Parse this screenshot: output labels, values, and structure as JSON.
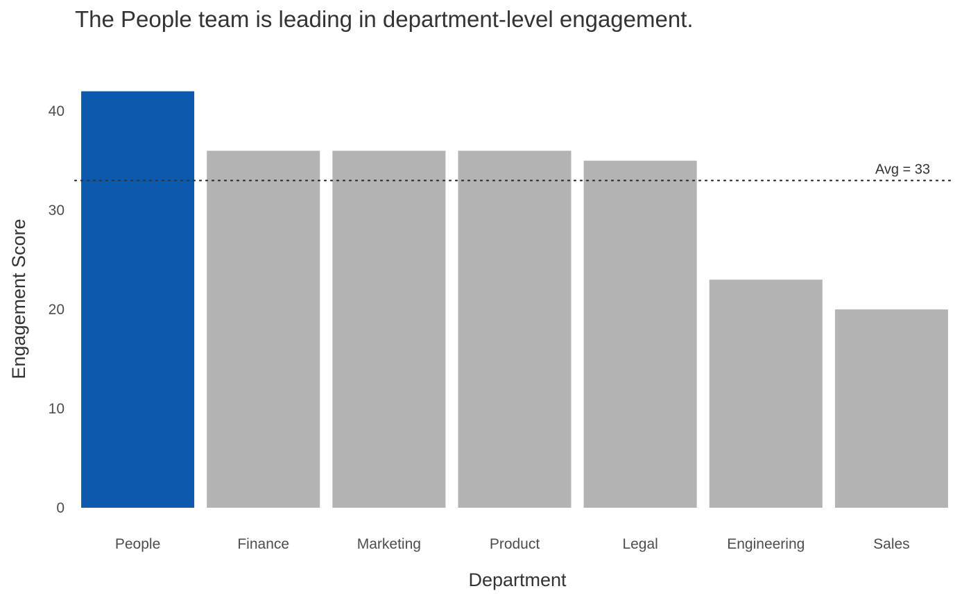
{
  "chart_data": {
    "type": "bar",
    "title": "The People team is leading in department-level engagement.",
    "xlabel": "Department",
    "ylabel": "Engagement Score",
    "categories": [
      "People",
      "Finance",
      "Marketing",
      "Product",
      "Legal",
      "Engineering",
      "Sales"
    ],
    "values": [
      42,
      36,
      36,
      36,
      35,
      23,
      20
    ],
    "ylim": [
      0,
      44
    ],
    "yticks": [
      0,
      10,
      20,
      30,
      40
    ],
    "grid": false,
    "highlight_category": "People",
    "colors": {
      "highlight": "#0b5aae",
      "default": "#b3b3b3",
      "reference_line": "#333333"
    },
    "reference_line": {
      "value": 33,
      "label": "Avg = 33",
      "style": "dotted"
    }
  }
}
